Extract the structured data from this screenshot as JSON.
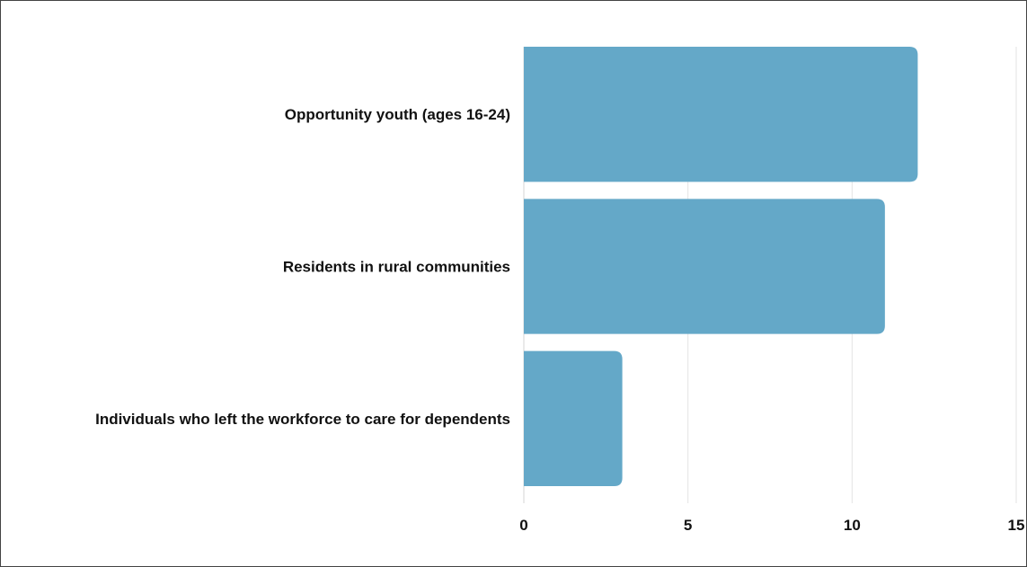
{
  "chart_data": {
    "type": "bar",
    "orientation": "horizontal",
    "categories": [
      "Opportunity youth (ages 16-24)",
      "Residents in rural communities",
      "Individuals who left the workforce to care for dependents"
    ],
    "values": [
      12,
      11,
      3
    ],
    "title": "",
    "xlabel": "",
    "ylabel": "",
    "xlim": [
      0,
      15
    ],
    "x_ticks": [
      "0",
      "5",
      "10",
      "15"
    ],
    "grid": "vertical",
    "bar_color": "#64a8c8"
  }
}
